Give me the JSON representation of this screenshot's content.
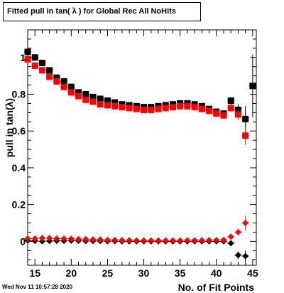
{
  "chart_data": {
    "type": "scatter",
    "title": "Fitted pull in tan( λ ) for Global Rec All NoHits",
    "xlabel": "No. of Fit Points",
    "ylabel": "pull in tan(λ)",
    "xlim": [
      14,
      45.5
    ],
    "ylim": [
      -0.13,
      1.15
    ],
    "x_ticks": [
      15,
      20,
      25,
      30,
      35,
      40,
      45
    ],
    "y_ticks": [
      0,
      0.2,
      0.4,
      0.6,
      0.8,
      1
    ],
    "y_tick_labels": [
      "0",
      "0.2",
      "0.4",
      "0.6",
      "0.8",
      "1"
    ],
    "grid": false,
    "series": [
      {
        "marker": "square",
        "color": "#000000",
        "x": [
          14,
          15,
          16,
          17,
          18,
          19,
          20,
          21,
          22,
          23,
          24,
          25,
          26,
          27,
          28,
          29,
          30,
          31,
          32,
          33,
          34,
          35,
          36,
          37,
          38,
          39,
          40,
          41,
          42,
          43,
          44,
          45
        ],
        "y": [
          1.03,
          1.0,
          0.97,
          0.93,
          0.89,
          0.87,
          0.84,
          0.81,
          0.8,
          0.785,
          0.775,
          0.765,
          0.755,
          0.745,
          0.74,
          0.735,
          0.73,
          0.73,
          0.735,
          0.74,
          0.745,
          0.75,
          0.75,
          0.745,
          0.735,
          0.72,
          0.705,
          0.695,
          0.765,
          0.715,
          0.665,
          0.845
        ],
        "err": [
          0.02,
          0.015,
          0.012,
          0.01,
          0.01,
          0.01,
          0.01,
          0.01,
          0.01,
          0.01,
          0.01,
          0.01,
          0.01,
          0.01,
          0.01,
          0.01,
          0.01,
          0.01,
          0.01,
          0.01,
          0.01,
          0.01,
          0.01,
          0.01,
          0.01,
          0.01,
          0.01,
          0.01,
          0.02,
          0.03,
          0.07,
          0.17
        ]
      },
      {
        "marker": "square",
        "color": "#ff0000",
        "x": [
          14,
          15,
          16,
          17,
          18,
          19,
          20,
          21,
          22,
          23,
          24,
          25,
          26,
          27,
          28,
          29,
          30,
          31,
          32,
          33,
          34,
          35,
          36,
          37,
          38,
          39,
          40,
          41,
          42,
          43,
          44
        ],
        "y": [
          0.99,
          0.955,
          0.93,
          0.895,
          0.87,
          0.84,
          0.81,
          0.79,
          0.77,
          0.76,
          0.745,
          0.74,
          0.735,
          0.73,
          0.725,
          0.72,
          0.715,
          0.715,
          0.72,
          0.725,
          0.73,
          0.735,
          0.735,
          0.73,
          0.72,
          0.71,
          0.695,
          0.685,
          0.725,
          0.69,
          0.575
        ],
        "err": [
          0.02,
          0.015,
          0.012,
          0.01,
          0.01,
          0.01,
          0.01,
          0.01,
          0.01,
          0.01,
          0.01,
          0.01,
          0.01,
          0.01,
          0.01,
          0.01,
          0.01,
          0.01,
          0.01,
          0.01,
          0.01,
          0.01,
          0.01,
          0.01,
          0.01,
          0.01,
          0.01,
          0.01,
          0.02,
          0.03,
          0.05
        ]
      },
      {
        "marker": "diamond",
        "color": "#000000",
        "x": [
          14,
          15,
          16,
          17,
          18,
          19,
          20,
          21,
          22,
          23,
          24,
          25,
          26,
          27,
          28,
          29,
          30,
          31,
          32,
          33,
          34,
          35,
          36,
          37,
          38,
          39,
          40,
          41,
          42,
          43,
          44
        ],
        "y": [
          0.005,
          0.003,
          0.0,
          0.002,
          0.003,
          0.003,
          0.004,
          0.003,
          0.002,
          0.002,
          0.002,
          0.001,
          0.001,
          0.0,
          0.0,
          0.0,
          0.0,
          0.0,
          0.0,
          0.0,
          0.0,
          0.0,
          0.0,
          0.0,
          0.0,
          0.0,
          0.0,
          0.0,
          -0.01,
          -0.075,
          -0.08
        ],
        "err": [
          0.01,
          0.008,
          0.006,
          0.005,
          0.005,
          0.005,
          0.005,
          0.005,
          0.005,
          0.005,
          0.005,
          0.005,
          0.005,
          0.005,
          0.005,
          0.005,
          0.005,
          0.005,
          0.005,
          0.005,
          0.005,
          0.005,
          0.005,
          0.005,
          0.005,
          0.005,
          0.005,
          0.005,
          0.01,
          0.02,
          0.03
        ]
      },
      {
        "marker": "diamond",
        "color": "#ff0000",
        "x": [
          14,
          15,
          16,
          17,
          18,
          19,
          20,
          21,
          22,
          23,
          24,
          25,
          26,
          27,
          28,
          29,
          30,
          31,
          32,
          33,
          34,
          35,
          36,
          37,
          38,
          39,
          40,
          41,
          42,
          43,
          44
        ],
        "y": [
          0.015,
          0.015,
          0.018,
          0.018,
          0.015,
          0.015,
          0.014,
          0.012,
          0.012,
          0.01,
          0.01,
          0.008,
          0.008,
          0.007,
          0.006,
          0.005,
          0.005,
          0.005,
          0.005,
          0.005,
          0.005,
          0.005,
          0.006,
          0.006,
          0.006,
          0.007,
          0.007,
          0.008,
          0.025,
          0.05,
          0.1
        ],
        "err": [
          0.01,
          0.008,
          0.006,
          0.005,
          0.005,
          0.005,
          0.005,
          0.005,
          0.005,
          0.005,
          0.005,
          0.005,
          0.005,
          0.005,
          0.005,
          0.005,
          0.005,
          0.005,
          0.005,
          0.005,
          0.005,
          0.005,
          0.005,
          0.005,
          0.005,
          0.005,
          0.005,
          0.005,
          0.01,
          0.02,
          0.04
        ]
      }
    ]
  },
  "footer_text": "Wed Nov 11 10:57:28 2020"
}
